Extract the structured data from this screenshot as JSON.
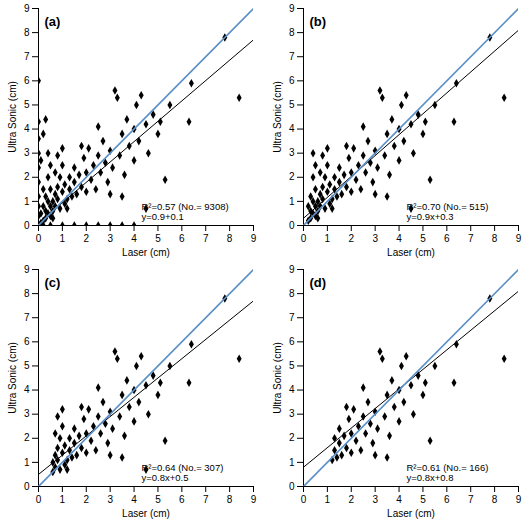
{
  "chart_data": [
    {
      "type": "scatter",
      "title": "(a)",
      "x_label": "Laser (cm)",
      "y_label": "Ultra Sonic (cm)",
      "xlim": [
        0,
        9
      ],
      "ylim": [
        0,
        9
      ],
      "xticks": [
        0,
        1,
        2,
        3,
        4,
        5,
        6,
        7,
        8,
        9
      ],
      "yticks": [
        0,
        1,
        2,
        3,
        4,
        5,
        6,
        7,
        8,
        9
      ],
      "grid": false,
      "color": "#000000",
      "marker": "diamond",
      "annotations": [
        "R²=0.57 (No.= 9308)",
        "y=0.9+0.1"
      ],
      "identity_line": {
        "x": [
          0,
          9
        ],
        "y": [
          0,
          9
        ],
        "color": "#5b8fc7"
      },
      "fit_line": {
        "x": [
          0,
          9
        ],
        "y": [
          0.1,
          7.7
        ],
        "color": "#000000"
      },
      "x": [
        1.2,
        1.3,
        1.3,
        1.4,
        1.5,
        1.5,
        1.6,
        1.7,
        1.8,
        1.9,
        2.0,
        2.0,
        2.1,
        2.2,
        2.3,
        2.4,
        2.5,
        2.6,
        2.7,
        2.8,
        2.9,
        3.0,
        3.1,
        3.2,
        3.3,
        3.4,
        3.5,
        3.6,
        3.7,
        3.8,
        4.0,
        4.0,
        4.1,
        4.2,
        4.3,
        4.5,
        4.6,
        4.8,
        5.0,
        5.1,
        5.3,
        5.5,
        2.5,
        1.8,
        3.0,
        6.3,
        6.4,
        7.8,
        8.4,
        3.5,
        0.6,
        0.6,
        0.7,
        0.7,
        0.8,
        0.8,
        0.9,
        0.9,
        1.0,
        1.0,
        1.1,
        1.1,
        0.7,
        1.2,
        4.5,
        0.8,
        1.0,
        0.3,
        0.3,
        0.4,
        0.4,
        0.5,
        0.5,
        0.3,
        0.4,
        0.5,
        0.2,
        0.6,
        0.4,
        0.5,
        0.2,
        0,
        0,
        0,
        0,
        0,
        0,
        0,
        0,
        0,
        0,
        0.5,
        1.0,
        1.5,
        2.0,
        2.5,
        3.0,
        3.5,
        4.0,
        0.2,
        0.1,
        0.1,
        0.2,
        0.1,
        0.2,
        0.3
      ],
      "y": [
        1.1,
        1.5,
        2.0,
        1.2,
        1.8,
        2.4,
        1.3,
        2.1,
        1.6,
        2.8,
        1.4,
        2.2,
        3.2,
        1.9,
        2.5,
        1.5,
        2.9,
        2.2,
        3.5,
        2.6,
        1.8,
        3.1,
        2.4,
        5.6,
        5.3,
        2.9,
        3.8,
        2.1,
        4.4,
        3.3,
        2.7,
        4.0,
        5.0,
        3.5,
        5.4,
        4.2,
        3.0,
        4.6,
        3.8,
        4.3,
        1.9,
        5.0,
        4.1,
        3.3,
        1.3,
        4.3,
        5.9,
        7.8,
        5.3,
        1.2,
        0.6,
        1.0,
        1.3,
        0.8,
        1.6,
        1.1,
        0.7,
        2.0,
        1.4,
        2.5,
        0.9,
        1.7,
        2.2,
        0.7,
        0.7,
        2.9,
        3.2,
        0.3,
        0.6,
        0.5,
        1.0,
        0.4,
        1.5,
        1.2,
        2.0,
        0.8,
        0.2,
        0.3,
        3.0,
        2.5,
        0.8,
        6.0,
        4.3,
        3.6,
        3.0,
        2.4,
        1.8,
        1.2,
        0.8,
        0.4,
        0,
        0,
        0,
        0,
        0,
        0,
        0,
        0,
        0,
        0,
        0.1,
        0.5,
        1.5,
        2.7,
        3.8,
        4.4
      ]
    },
    {
      "type": "scatter",
      "title": "(b)",
      "x_label": "Laser (cm)",
      "y_label": "Ultra Sonic (cm)",
      "xlim": [
        0,
        9
      ],
      "ylim": [
        0,
        9
      ],
      "xticks": [
        0,
        1,
        2,
        3,
        4,
        5,
        6,
        7,
        8,
        9
      ],
      "yticks": [
        0,
        1,
        2,
        3,
        4,
        5,
        6,
        7,
        8,
        9
      ],
      "grid": false,
      "color": "#000000",
      "marker": "diamond",
      "annotations": [
        "R²=0.70 (No.= 515)",
        "y=0.9x+0.3"
      ],
      "identity_line": {
        "x": [
          0,
          9
        ],
        "y": [
          0,
          9
        ],
        "color": "#5b8fc7"
      },
      "fit_line": {
        "x": [
          0,
          9
        ],
        "y": [
          0.3,
          8.1
        ],
        "color": "#000000"
      },
      "x": [
        1.2,
        1.3,
        1.3,
        1.4,
        1.5,
        1.5,
        1.6,
        1.7,
        1.8,
        1.9,
        2.0,
        2.0,
        2.1,
        2.2,
        2.3,
        2.4,
        2.5,
        2.6,
        2.7,
        2.8,
        2.9,
        3.0,
        3.1,
        3.2,
        3.3,
        3.4,
        3.5,
        3.6,
        3.7,
        3.8,
        4.0,
        4.0,
        4.1,
        4.2,
        4.3,
        4.5,
        4.6,
        4.8,
        5.0,
        5.1,
        5.3,
        5.5,
        2.5,
        1.8,
        3.0,
        6.3,
        6.4,
        7.8,
        8.4,
        3.5,
        0.6,
        0.6,
        0.7,
        0.7,
        0.8,
        0.8,
        0.9,
        0.9,
        1.0,
        1.0,
        1.1,
        1.1,
        0.7,
        1.2,
        4.5,
        0.8,
        1.0,
        0.3,
        0.3,
        0.4,
        0.4,
        0.5,
        0.5,
        0.3,
        0.4,
        0.5,
        0.2,
        0.6,
        0.4,
        0.5,
        0.2
      ],
      "y": [
        1.1,
        1.5,
        2.0,
        1.2,
        1.8,
        2.4,
        1.3,
        2.1,
        1.6,
        2.8,
        1.4,
        2.2,
        3.2,
        1.9,
        2.5,
        1.5,
        2.9,
        2.2,
        3.5,
        2.6,
        1.8,
        3.1,
        2.4,
        5.6,
        5.3,
        2.9,
        3.8,
        2.1,
        4.4,
        3.3,
        2.7,
        4.0,
        5.0,
        3.5,
        5.4,
        4.2,
        3.0,
        4.6,
        3.8,
        4.3,
        1.9,
        5.0,
        4.1,
        3.3,
        1.3,
        4.3,
        5.9,
        7.8,
        5.3,
        1.2,
        0.6,
        1.0,
        1.3,
        0.8,
        1.6,
        1.1,
        0.7,
        2.0,
        1.4,
        2.5,
        0.9,
        1.7,
        2.2,
        0.7,
        0.7,
        2.9,
        3.2,
        0.3,
        0.6,
        0.5,
        1.0,
        0.4,
        1.5,
        1.2,
        2.0,
        0.8,
        0.2,
        0.3,
        3.0,
        2.5,
        0.8
      ]
    },
    {
      "type": "scatter",
      "title": "(c)",
      "x_label": "Laser (cm)",
      "y_label": "Ultra Sonic (cm)",
      "xlim": [
        0,
        9
      ],
      "ylim": [
        0,
        9
      ],
      "xticks": [
        0,
        1,
        2,
        3,
        4,
        5,
        6,
        7,
        8,
        9
      ],
      "yticks": [
        0,
        1,
        2,
        3,
        4,
        5,
        6,
        7,
        8,
        9
      ],
      "grid": false,
      "color": "#000000",
      "marker": "diamond",
      "annotations": [
        "R²=0.64 (No.= 307)",
        "y=0.8x+0.5"
      ],
      "identity_line": {
        "x": [
          0,
          9
        ],
        "y": [
          0,
          9
        ],
        "color": "#5b8fc7"
      },
      "fit_line": {
        "x": [
          0,
          9
        ],
        "y": [
          0.5,
          7.7
        ],
        "color": "#000000"
      },
      "x": [
        1.2,
        1.3,
        1.3,
        1.4,
        1.5,
        1.5,
        1.6,
        1.7,
        1.8,
        1.9,
        2.0,
        2.0,
        2.1,
        2.2,
        2.3,
        2.4,
        2.5,
        2.6,
        2.7,
        2.8,
        2.9,
        3.0,
        3.1,
        3.2,
        3.3,
        3.4,
        3.5,
        3.6,
        3.7,
        3.8,
        4.0,
        4.0,
        4.1,
        4.2,
        4.3,
        4.5,
        4.6,
        4.8,
        5.0,
        5.1,
        5.3,
        5.5,
        2.5,
        1.8,
        3.0,
        6.3,
        6.4,
        7.8,
        8.4,
        3.5,
        0.6,
        0.6,
        0.7,
        0.7,
        0.8,
        0.8,
        0.9,
        0.9,
        1.0,
        1.0,
        1.1,
        1.1,
        0.7,
        1.2,
        4.5,
        0.8,
        1.0
      ],
      "y": [
        1.1,
        1.5,
        2.0,
        1.2,
        1.8,
        2.4,
        1.3,
        2.1,
        1.6,
        2.8,
        1.4,
        2.2,
        3.2,
        1.9,
        2.5,
        1.5,
        2.9,
        2.2,
        3.5,
        2.6,
        1.8,
        3.1,
        2.4,
        5.6,
        5.3,
        2.9,
        3.8,
        2.1,
        4.4,
        3.3,
        2.7,
        4.0,
        5.0,
        3.5,
        5.4,
        4.2,
        3.0,
        4.6,
        3.8,
        4.3,
        1.9,
        5.0,
        4.1,
        3.3,
        1.3,
        4.3,
        5.9,
        7.8,
        5.3,
        1.2,
        0.6,
        1.0,
        1.3,
        0.8,
        1.6,
        1.1,
        0.7,
        2.0,
        1.4,
        2.5,
        0.9,
        1.7,
        2.2,
        0.7,
        0.7,
        2.9,
        3.2
      ]
    },
    {
      "type": "scatter",
      "title": "(d)",
      "x_label": "Laser (cm)",
      "y_label": "Ultra Sonic (cm)",
      "xlim": [
        0,
        9
      ],
      "ylim": [
        0,
        9
      ],
      "xticks": [
        0,
        1,
        2,
        3,
        4,
        5,
        6,
        7,
        8,
        9
      ],
      "yticks": [
        0,
        1,
        2,
        3,
        4,
        5,
        6,
        7,
        8,
        9
      ],
      "grid": false,
      "color": "#000000",
      "marker": "diamond",
      "annotations": [
        "R²=0.61 (No.= 166)",
        "y=0.8x+0.8"
      ],
      "identity_line": {
        "x": [
          0,
          9
        ],
        "y": [
          0,
          9
        ],
        "color": "#5b8fc7"
      },
      "fit_line": {
        "x": [
          0,
          9
        ],
        "y": [
          0.8,
          8.1
        ],
        "color": "#000000"
      },
      "x": [
        1.2,
        1.3,
        1.3,
        1.4,
        1.5,
        1.5,
        1.6,
        1.7,
        1.8,
        1.9,
        2.0,
        2.0,
        2.1,
        2.2,
        2.3,
        2.4,
        2.5,
        2.6,
        2.7,
        2.8,
        2.9,
        3.0,
        3.1,
        3.2,
        3.3,
        3.4,
        3.5,
        3.6,
        3.7,
        3.8,
        4.0,
        4.0,
        4.1,
        4.2,
        4.3,
        4.5,
        4.6,
        4.8,
        5.0,
        5.1,
        5.3,
        5.5,
        2.5,
        1.8,
        3.0,
        6.3,
        6.4,
        7.8,
        8.4,
        3.5
      ],
      "y": [
        1.1,
        1.5,
        2.0,
        1.2,
        1.8,
        2.4,
        1.3,
        2.1,
        1.6,
        2.8,
        1.4,
        2.2,
        3.2,
        1.9,
        2.5,
        1.5,
        2.9,
        2.2,
        3.5,
        2.6,
        1.8,
        3.1,
        2.4,
        5.6,
        5.3,
        2.9,
        3.8,
        2.1,
        4.4,
        3.3,
        2.7,
        4.0,
        5.0,
        3.5,
        5.4,
        4.2,
        3.0,
        4.6,
        3.8,
        4.3,
        1.9,
        5.0,
        4.1,
        3.3,
        1.3,
        4.3,
        5.9,
        7.8,
        5.3,
        1.2
      ]
    }
  ]
}
